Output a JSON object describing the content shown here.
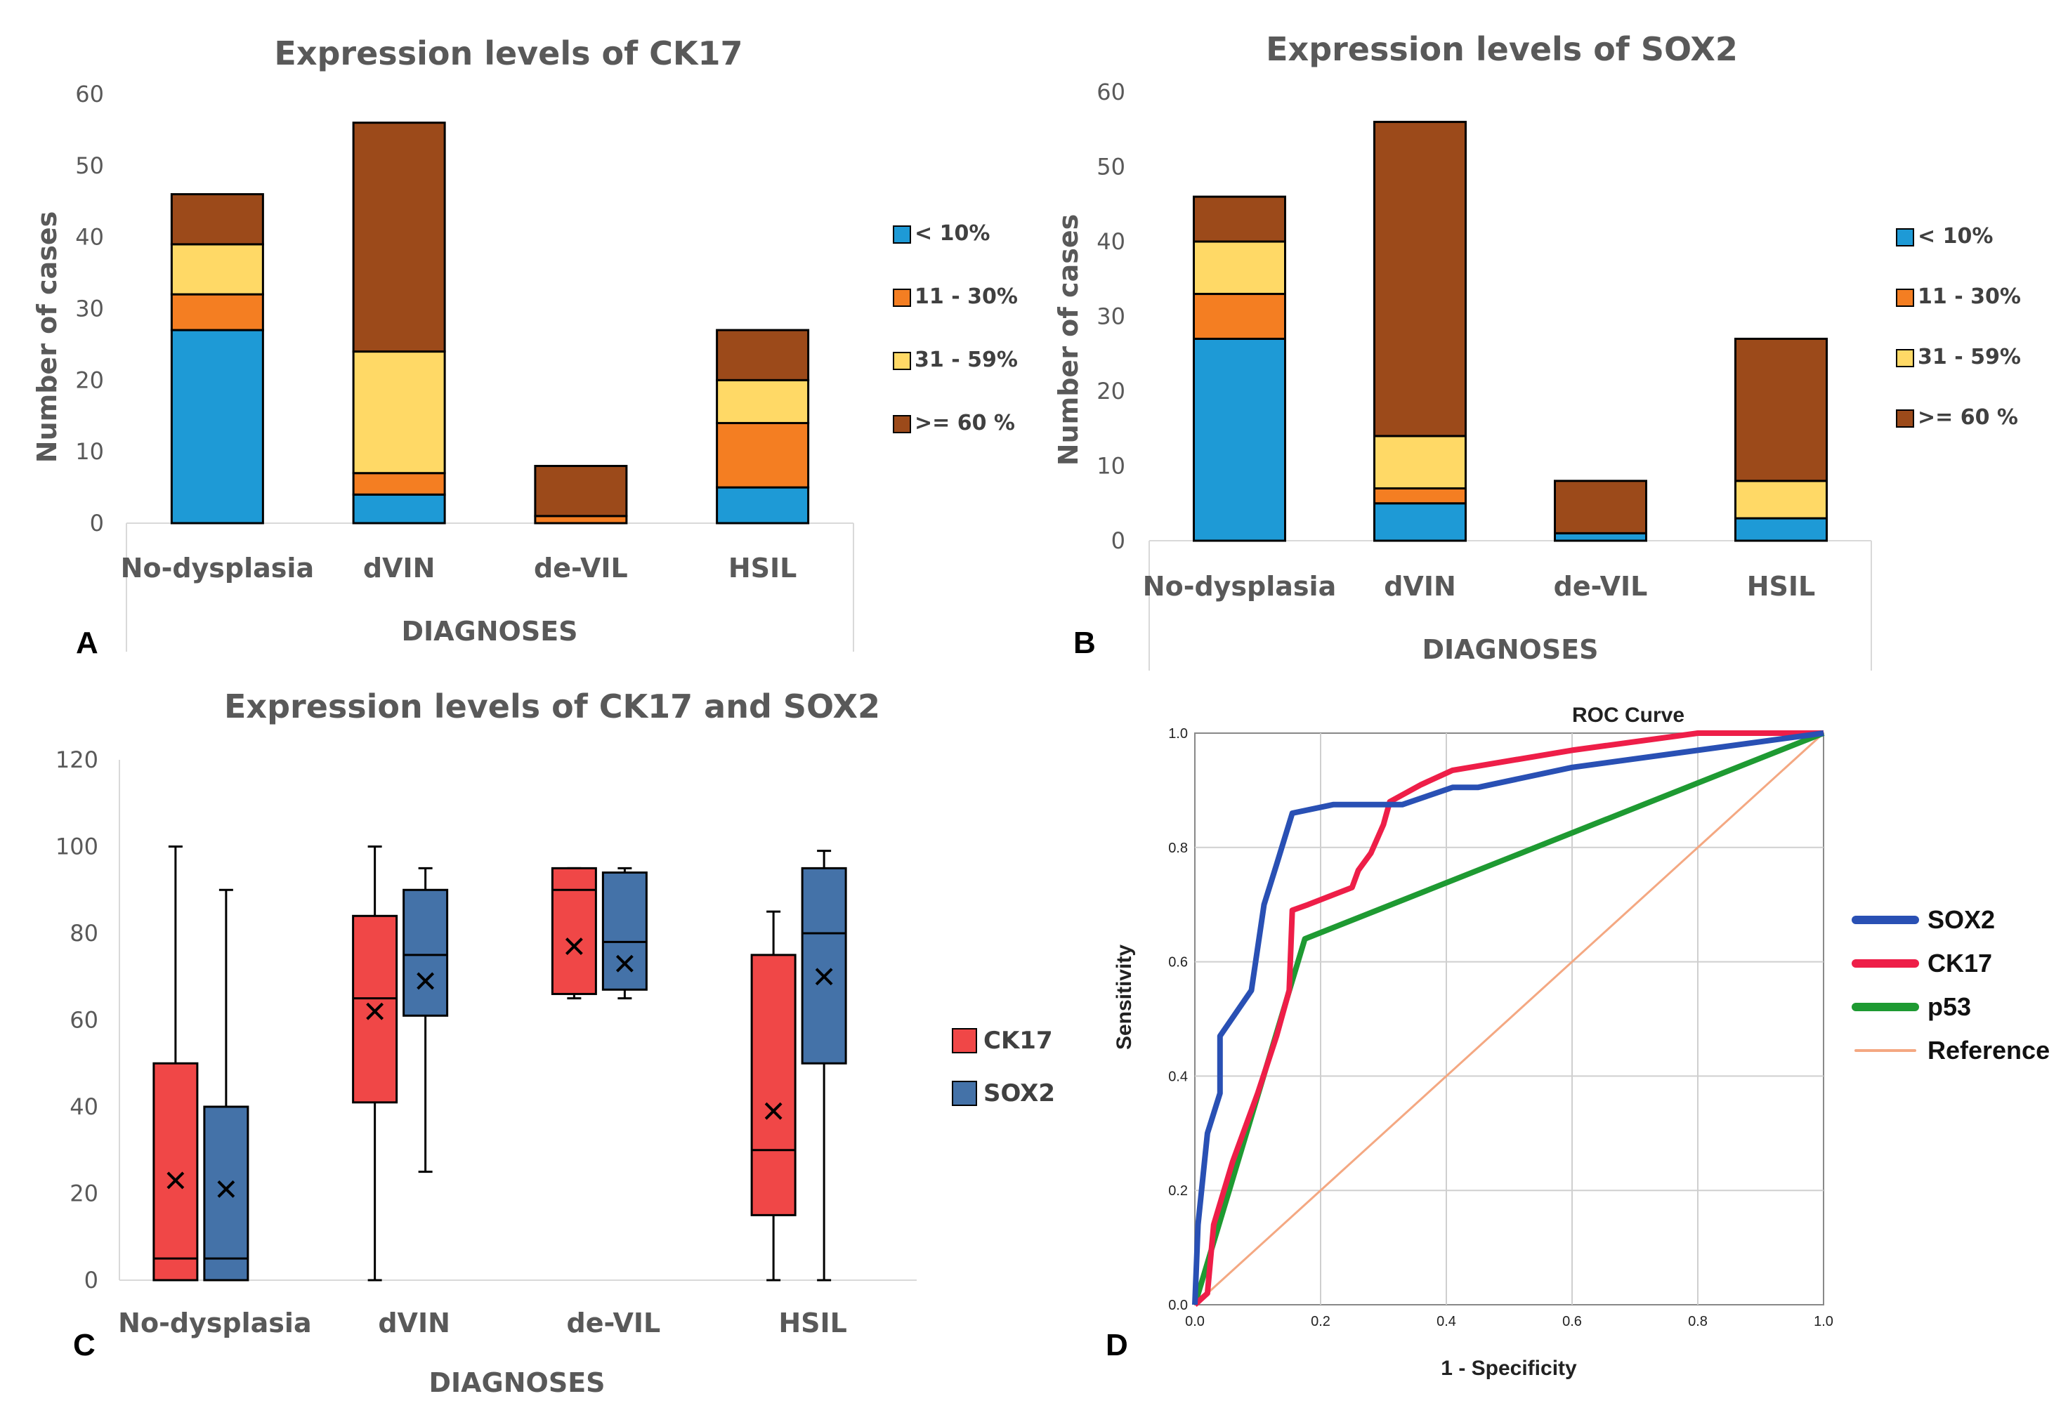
{
  "panels": {
    "A": "A",
    "B": "B",
    "C": "C",
    "D": "D"
  },
  "colors": {
    "lt10": "#1E9AD6",
    "p11_30": "#F47E22",
    "p31_59": "#FFD966",
    "ge60": "#9C4A1A",
    "ck17_box": "#F04747",
    "sox2_box": "#4472A8",
    "roc_sox2": "#2950B4",
    "roc_ck17": "#EE1E48",
    "roc_p53": "#1E9A32",
    "roc_ref": "#F4A882"
  },
  "chart_data": [
    {
      "id": "A",
      "type": "bar",
      "stacked": true,
      "title": "Expression levels of CK17",
      "xlabel": "DIAGNOSES",
      "ylabel": "Number of cases",
      "ylim": [
        0,
        60
      ],
      "yticks": [
        "0",
        "10",
        "20",
        "30",
        "40",
        "50",
        "60"
      ],
      "categories": [
        "No-dysplasia",
        "dVIN",
        "de-VIL",
        "HSIL"
      ],
      "legend_position": "right",
      "series": [
        {
          "name": "< 10%",
          "values": [
            27,
            4,
            0,
            5
          ]
        },
        {
          "name": "11 - 30%",
          "values": [
            5,
            3,
            1,
            9
          ]
        },
        {
          "name": "31 - 59%",
          "values": [
            7,
            17,
            0,
            6
          ]
        },
        {
          "name": ">= 60 %",
          "values": [
            7,
            32,
            7,
            7
          ]
        }
      ]
    },
    {
      "id": "B",
      "type": "bar",
      "stacked": true,
      "title": "Expression levels of SOX2",
      "xlabel": "DIAGNOSES",
      "ylabel": "Number of cases",
      "ylim": [
        0,
        60
      ],
      "yticks": [
        "0",
        "10",
        "20",
        "30",
        "40",
        "50",
        "60"
      ],
      "categories": [
        "No-dysplasia",
        "dVIN",
        "de-VIL",
        "HSIL"
      ],
      "legend_position": "right",
      "series": [
        {
          "name": "< 10%",
          "values": [
            27,
            5,
            1,
            3
          ]
        },
        {
          "name": "11 - 30%",
          "values": [
            6,
            2,
            0,
            0
          ]
        },
        {
          "name": "31 - 59%",
          "values": [
            7,
            7,
            0,
            5
          ]
        },
        {
          "name": ">= 60 %",
          "values": [
            6,
            42,
            7,
            19
          ]
        }
      ]
    },
    {
      "id": "C",
      "type": "box",
      "title": "Expression levels of CK17 and SOX2",
      "xlabel": "DIAGNOSES",
      "ylabel": "",
      "ylim": [
        0,
        120
      ],
      "yticks": [
        "0",
        "20",
        "40",
        "60",
        "80",
        "100",
        "120"
      ],
      "categories": [
        "No-dysplasia",
        "dVIN",
        "de-VIL",
        "HSIL"
      ],
      "legend_position": "right",
      "series": [
        {
          "name": "CK17",
          "boxes": [
            {
              "min": 0,
              "q1": 0,
              "median": 5,
              "q3": 50,
              "max": 100,
              "mean": 23
            },
            {
              "min": 0,
              "q1": 41,
              "median": 65,
              "q3": 84,
              "max": 100,
              "mean": 62
            },
            {
              "min": 65,
              "q1": 66,
              "median": 90,
              "q3": 95,
              "max": 95,
              "mean": 77
            },
            {
              "min": 0,
              "q1": 15,
              "median": 30,
              "q3": 75,
              "max": 85,
              "mean": 39
            }
          ]
        },
        {
          "name": "SOX2",
          "boxes": [
            {
              "min": 0,
              "q1": 0,
              "median": 5,
              "q3": 40,
              "max": 90,
              "mean": 21
            },
            {
              "min": 25,
              "q1": 61,
              "median": 75,
              "q3": 90,
              "max": 95,
              "mean": 69
            },
            {
              "min": 65,
              "q1": 67,
              "median": 78,
              "q3": 94,
              "max": 95,
              "mean": 73
            },
            {
              "min": 0,
              "q1": 50,
              "median": 80,
              "q3": 95,
              "max": 99,
              "mean": 70
            }
          ]
        }
      ]
    },
    {
      "id": "D",
      "type": "line",
      "title": "ROC Curve",
      "xlabel": "1 - Specificity",
      "ylabel": "Sensitivity",
      "xlim": [
        0,
        1
      ],
      "ylim": [
        0,
        1
      ],
      "ticks": [
        "0.0",
        "0.2",
        "0.4",
        "0.6",
        "0.8",
        "1.0"
      ],
      "grid": true,
      "legend_position": "right",
      "series": [
        {
          "name": "SOX2",
          "x": [
            0,
            0.005,
            0.02,
            0.04,
            0.04,
            0.09,
            0.11,
            0.13,
            0.155,
            0.22,
            0.33,
            0.37,
            0.41,
            0.45,
            0.6,
            0.8,
            1.0
          ],
          "y": [
            0,
            0.14,
            0.3,
            0.37,
            0.47,
            0.55,
            0.7,
            0.77,
            0.86,
            0.875,
            0.875,
            0.89,
            0.905,
            0.905,
            0.94,
            0.97,
            1.0
          ]
        },
        {
          "name": "CK17",
          "x": [
            0,
            0.02,
            0.03,
            0.06,
            0.1,
            0.13,
            0.15,
            0.155,
            0.18,
            0.25,
            0.26,
            0.28,
            0.3,
            0.31,
            0.36,
            0.41,
            0.6,
            0.8,
            1.0
          ],
          "y": [
            0,
            0.02,
            0.14,
            0.25,
            0.37,
            0.47,
            0.55,
            0.69,
            0.7,
            0.73,
            0.76,
            0.79,
            0.84,
            0.88,
            0.91,
            0.935,
            0.97,
            1.0,
            1.0
          ]
        },
        {
          "name": "p53",
          "x": [
            0,
            0.175,
            1.0
          ],
          "y": [
            0,
            0.64,
            1.0
          ]
        },
        {
          "name": "Reference",
          "x": [
            0,
            1
          ],
          "y": [
            0,
            1
          ]
        }
      ]
    }
  ]
}
